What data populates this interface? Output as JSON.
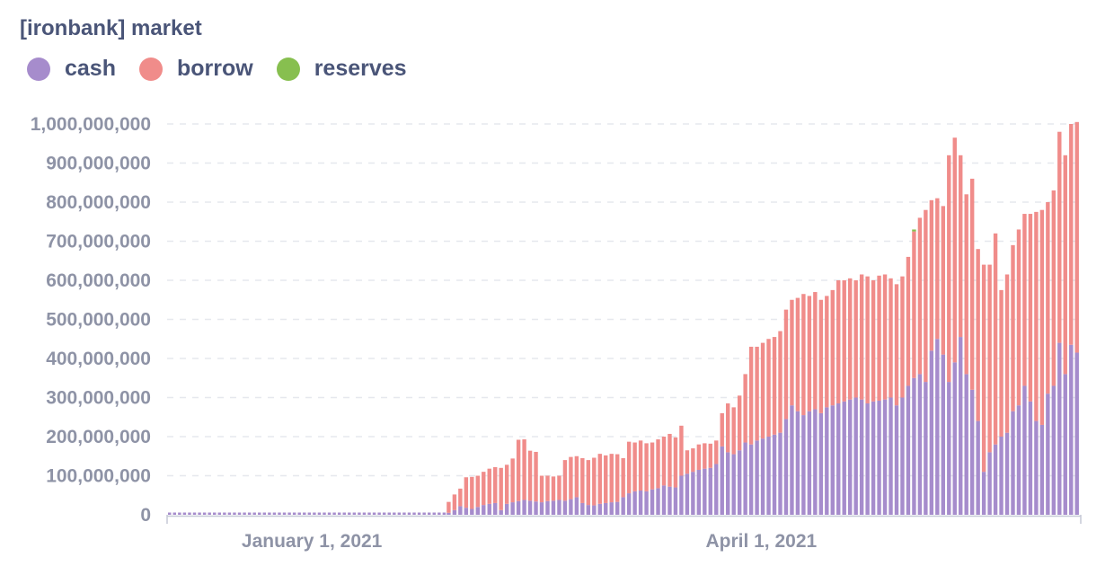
{
  "title": "[ironbank] market",
  "legend": [
    {
      "label": "cash",
      "color": "#a68ccc"
    },
    {
      "label": "borrow",
      "color": "#f08c8a"
    },
    {
      "label": "reserves",
      "color": "#87bf4f"
    }
  ],
  "chart_data": {
    "type": "bar",
    "stacked": true,
    "title": "[ironbank] market",
    "xlabel": "",
    "ylabel": "",
    "ylim": [
      0,
      1000000000
    ],
    "yticks": [
      0,
      100000000,
      200000000,
      300000000,
      400000000,
      500000000,
      600000000,
      700000000,
      800000000,
      900000000,
      1000000000
    ],
    "ytick_labels": [
      "0",
      "100,000,000",
      "200,000,000",
      "300,000,000",
      "400,000,000",
      "500,000,000",
      "600,000,000",
      "700,000,000",
      "800,000,000",
      "900,000,000",
      "1,000,000,000"
    ],
    "x_start": "2020-12-03",
    "x_end": "2021-06-04",
    "xtick_labels": [
      {
        "date": "2021-01-01",
        "label": "January 1, 2021"
      },
      {
        "date": "2021-04-01",
        "label": "April 1, 2021"
      }
    ],
    "grid": true,
    "legend_position": "top-left",
    "active_from": "2021-01-28",
    "series": [
      {
        "name": "cash",
        "color": "#a68ccc",
        "values": [
          5000000,
          12000000,
          22000000,
          18000000,
          15000000,
          20000000,
          25000000,
          28000000,
          30000000,
          12000000,
          28000000,
          32000000,
          35000000,
          38000000,
          36000000,
          34000000,
          32000000,
          35000000,
          36000000,
          38000000,
          36000000,
          40000000,
          45000000,
          30000000,
          25000000,
          24000000,
          28000000,
          30000000,
          32000000,
          33000000,
          45000000,
          55000000,
          60000000,
          62000000,
          60000000,
          65000000,
          68000000,
          75000000,
          72000000,
          70000000,
          100000000,
          105000000,
          110000000,
          115000000,
          118000000,
          120000000,
          130000000,
          175000000,
          160000000,
          155000000,
          165000000,
          185000000,
          180000000,
          190000000,
          195000000,
          200000000,
          205000000,
          210000000,
          245000000,
          280000000,
          265000000,
          255000000,
          265000000,
          270000000,
          260000000,
          275000000,
          280000000,
          285000000,
          290000000,
          295000000,
          300000000,
          295000000,
          285000000,
          290000000,
          292000000,
          295000000,
          300000000,
          280000000,
          300000000,
          330000000,
          350000000,
          360000000,
          340000000,
          420000000,
          450000000,
          410000000,
          340000000,
          390000000,
          455000000,
          360000000,
          320000000,
          240000000,
          110000000,
          160000000,
          180000000,
          200000000,
          210000000,
          265000000,
          280000000,
          330000000,
          290000000,
          240000000,
          230000000,
          310000000,
          330000000,
          440000000,
          360000000,
          435000000,
          415000000
        ]
      },
      {
        "name": "borrow",
        "color": "#f08c8a",
        "values": [
          28000000,
          40000000,
          45000000,
          78000000,
          82000000,
          80000000,
          85000000,
          90000000,
          92000000,
          108000000,
          100000000,
          112000000,
          157000000,
          155000000,
          128000000,
          127000000,
          68000000,
          65000000,
          62000000,
          62000000,
          104000000,
          108000000,
          105000000,
          115000000,
          115000000,
          122000000,
          128000000,
          122000000,
          124000000,
          122000000,
          100000000,
          132000000,
          125000000,
          128000000,
          123000000,
          120000000,
          125000000,
          125000000,
          135000000,
          128000000,
          128000000,
          60000000,
          60000000,
          65000000,
          65000000,
          62000000,
          60000000,
          85000000,
          125000000,
          120000000,
          140000000,
          175000000,
          250000000,
          240000000,
          245000000,
          250000000,
          250000000,
          260000000,
          280000000,
          270000000,
          290000000,
          310000000,
          295000000,
          300000000,
          290000000,
          285000000,
          295000000,
          315000000,
          310000000,
          310000000,
          300000000,
          320000000,
          325000000,
          310000000,
          320000000,
          320000000,
          305000000,
          310000000,
          310000000,
          330000000,
          375000000,
          400000000,
          440000000,
          385000000,
          360000000,
          380000000,
          580000000,
          575000000,
          465000000,
          460000000,
          540000000,
          440000000,
          530000000,
          480000000,
          540000000,
          375000000,
          405000000,
          425000000,
          450000000,
          440000000,
          480000000,
          535000000,
          550000000,
          490000000,
          500000000,
          540000000,
          560000000,
          565000000,
          590000000
        ]
      },
      {
        "name": "reserves",
        "color": "#87bf4f",
        "values": [
          0,
          0,
          0,
          0,
          0,
          0,
          0,
          0,
          0,
          0,
          0,
          0,
          0,
          0,
          0,
          0,
          0,
          0,
          0,
          0,
          0,
          0,
          0,
          0,
          0,
          0,
          0,
          0,
          0,
          0,
          0,
          0,
          0,
          0,
          0,
          0,
          0,
          0,
          0,
          0,
          0,
          0,
          0,
          0,
          0,
          0,
          0,
          0,
          0,
          0,
          0,
          0,
          0,
          0,
          0,
          0,
          0,
          0,
          0,
          0,
          0,
          0,
          0,
          0,
          0,
          0,
          0,
          0,
          0,
          0,
          0,
          0,
          0,
          0,
          0,
          0,
          0,
          0,
          0,
          0,
          5000000,
          0,
          0,
          0,
          0,
          0,
          0,
          0,
          0,
          0,
          0,
          0,
          0,
          0,
          0,
          0,
          0,
          0,
          0,
          0,
          0,
          0,
          0,
          0,
          0,
          0,
          0,
          0,
          0
        ]
      }
    ]
  }
}
